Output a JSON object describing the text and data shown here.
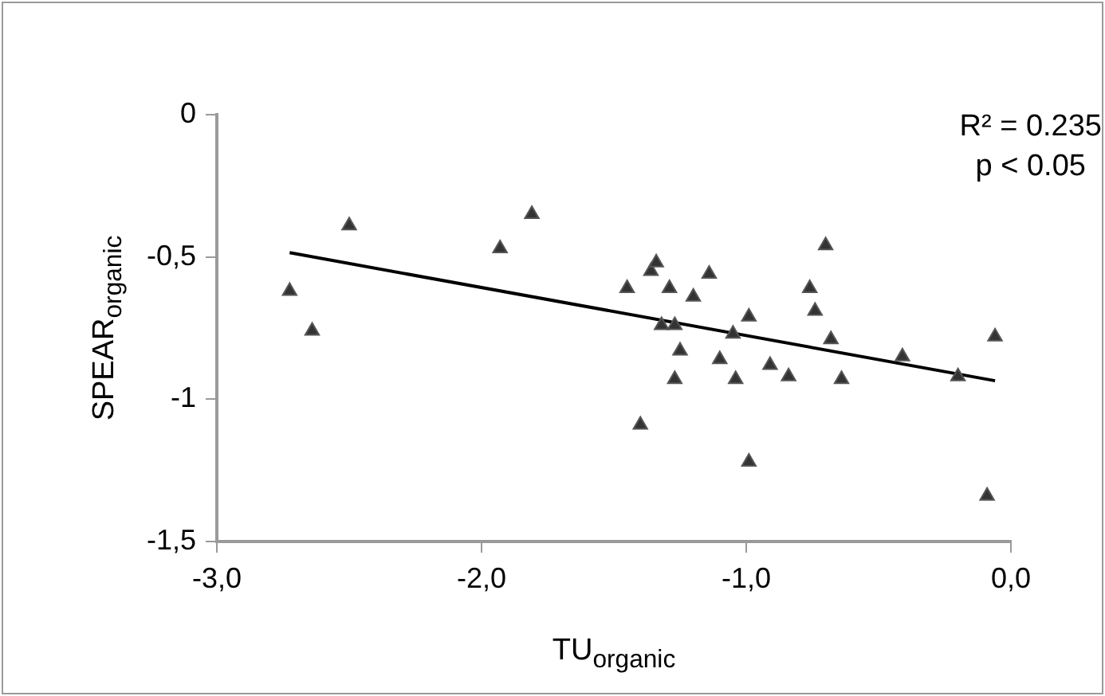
{
  "chart_data": {
    "type": "scatter",
    "xlabel": "TU$_{organic}$",
    "ylabel": "SPEAR$_{organic}$",
    "annotations": [
      "R² = 0.235",
      "p < 0.05"
    ],
    "xlim": [
      -3,
      0
    ],
    "xticks": [
      {
        "value": -3,
        "label": "-3,0"
      },
      {
        "value": -2,
        "label": "-2,0"
      },
      {
        "value": -1,
        "label": "-1,0"
      },
      {
        "value": 0,
        "label": "0,0"
      }
    ],
    "ylim": [
      -1.5,
      0
    ],
    "yticks": [
      {
        "value": 0,
        "label": "0"
      },
      {
        "value": -0.5,
        "label": "-0,5"
      },
      {
        "value": -1,
        "label": "-1"
      },
      {
        "value": -1.5,
        "label": "-1,5"
      }
    ],
    "legend": false,
    "series": [
      {
        "type": "scatter",
        "marker": "triangle",
        "color": "#333333",
        "x": [
          -2.725,
          -2.64,
          -2.5,
          -1.93,
          -1.81,
          -1.45,
          -1.4,
          -1.36,
          -1.34,
          -1.32,
          -1.27,
          -1.29,
          -1.25,
          -1.27,
          -1.2,
          -1.14,
          -1.1,
          -1.05,
          -1.04,
          -0.99,
          -0.99,
          -0.91,
          -0.84,
          -0.76,
          -0.74,
          -0.7,
          -0.68,
          -0.64,
          -0.41,
          -0.2,
          -0.09,
          -0.06
        ],
        "values": [
          -0.62,
          -0.76,
          -0.39,
          -0.47,
          -0.35,
          -0.61,
          -1.09,
          -0.55,
          -0.52,
          -0.74,
          -0.74,
          -0.61,
          -0.83,
          -0.93,
          -0.64,
          -0.56,
          -0.86,
          -0.77,
          -0.93,
          -0.71,
          -1.22,
          -0.88,
          -0.92,
          -0.61,
          -0.69,
          -0.46,
          -0.79,
          -0.93,
          -0.85,
          -0.92,
          -1.34,
          -0.78
        ]
      },
      {
        "type": "line",
        "marker": "none",
        "color": "#000000",
        "x": [
          -2.725,
          -0.06
        ],
        "values": [
          -0.485,
          -0.935
        ]
      }
    ]
  }
}
